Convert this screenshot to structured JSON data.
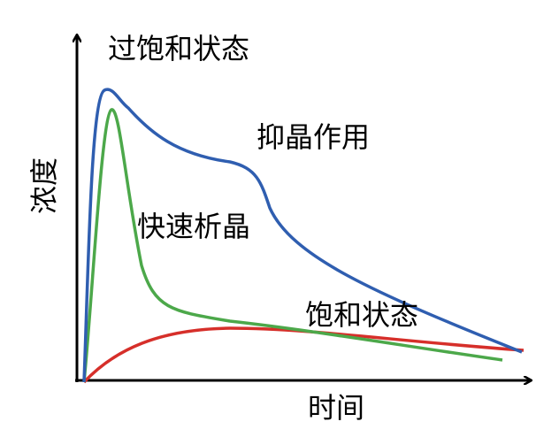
{
  "axes": {
    "y_label": "浓度",
    "x_label": "时间"
  },
  "annotations": {
    "supersaturated": "过饱和状态",
    "inhibition": "抑晶作用",
    "rapid_crystallization": "快速析晶",
    "saturated": "饱和状态"
  }
}
